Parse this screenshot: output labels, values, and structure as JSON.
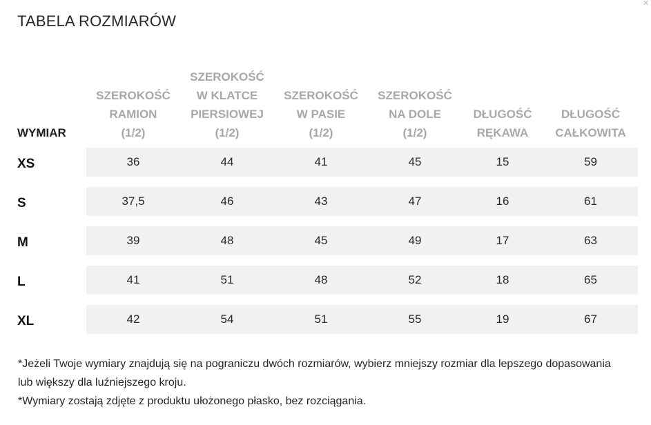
{
  "title": "TABELA ROZMIARÓW",
  "close_symbol": "×",
  "table": {
    "first_header": "WYMIAR",
    "columns": [
      [
        "SZEROKOŚĆ",
        "RAMION",
        "(1/2)"
      ],
      [
        "SZEROKOŚĆ",
        "W KLATCE",
        "PIERSIOWEJ",
        "(1/2)"
      ],
      [
        "SZEROKOŚĆ",
        "W PASIE",
        "(1/2)"
      ],
      [
        "SZEROKOŚĆ",
        "NA DOLE",
        "(1/2)"
      ],
      [
        "DŁUGOŚĆ",
        "RĘKAWA"
      ],
      [
        "DŁUGOŚĆ",
        "CAŁKOWITA"
      ]
    ],
    "rows": [
      {
        "size": "XS",
        "values": [
          "36",
          "44",
          "41",
          "45",
          "15",
          "59"
        ]
      },
      {
        "size": "S",
        "values": [
          "37,5",
          "46",
          "43",
          "47",
          "16",
          "61"
        ]
      },
      {
        "size": "M",
        "values": [
          "39",
          "48",
          "45",
          "49",
          "17",
          "63"
        ]
      },
      {
        "size": "L",
        "values": [
          "41",
          "51",
          "48",
          "52",
          "18",
          "65"
        ]
      },
      {
        "size": "XL",
        "values": [
          "42",
          "54",
          "51",
          "55",
          "19",
          "67"
        ]
      }
    ]
  },
  "notes": [
    "*Jeżeli Twoje wymiary znajdują się na pograniczu dwóch rozmiarów, wybierz mniejszy rozmiar dla lepszego dopasowania lub większy dla luźniejszego kroju.",
    "*Wymiary zostają zdjęte z produktu ułożonego płasko, bez rozciągania."
  ]
}
